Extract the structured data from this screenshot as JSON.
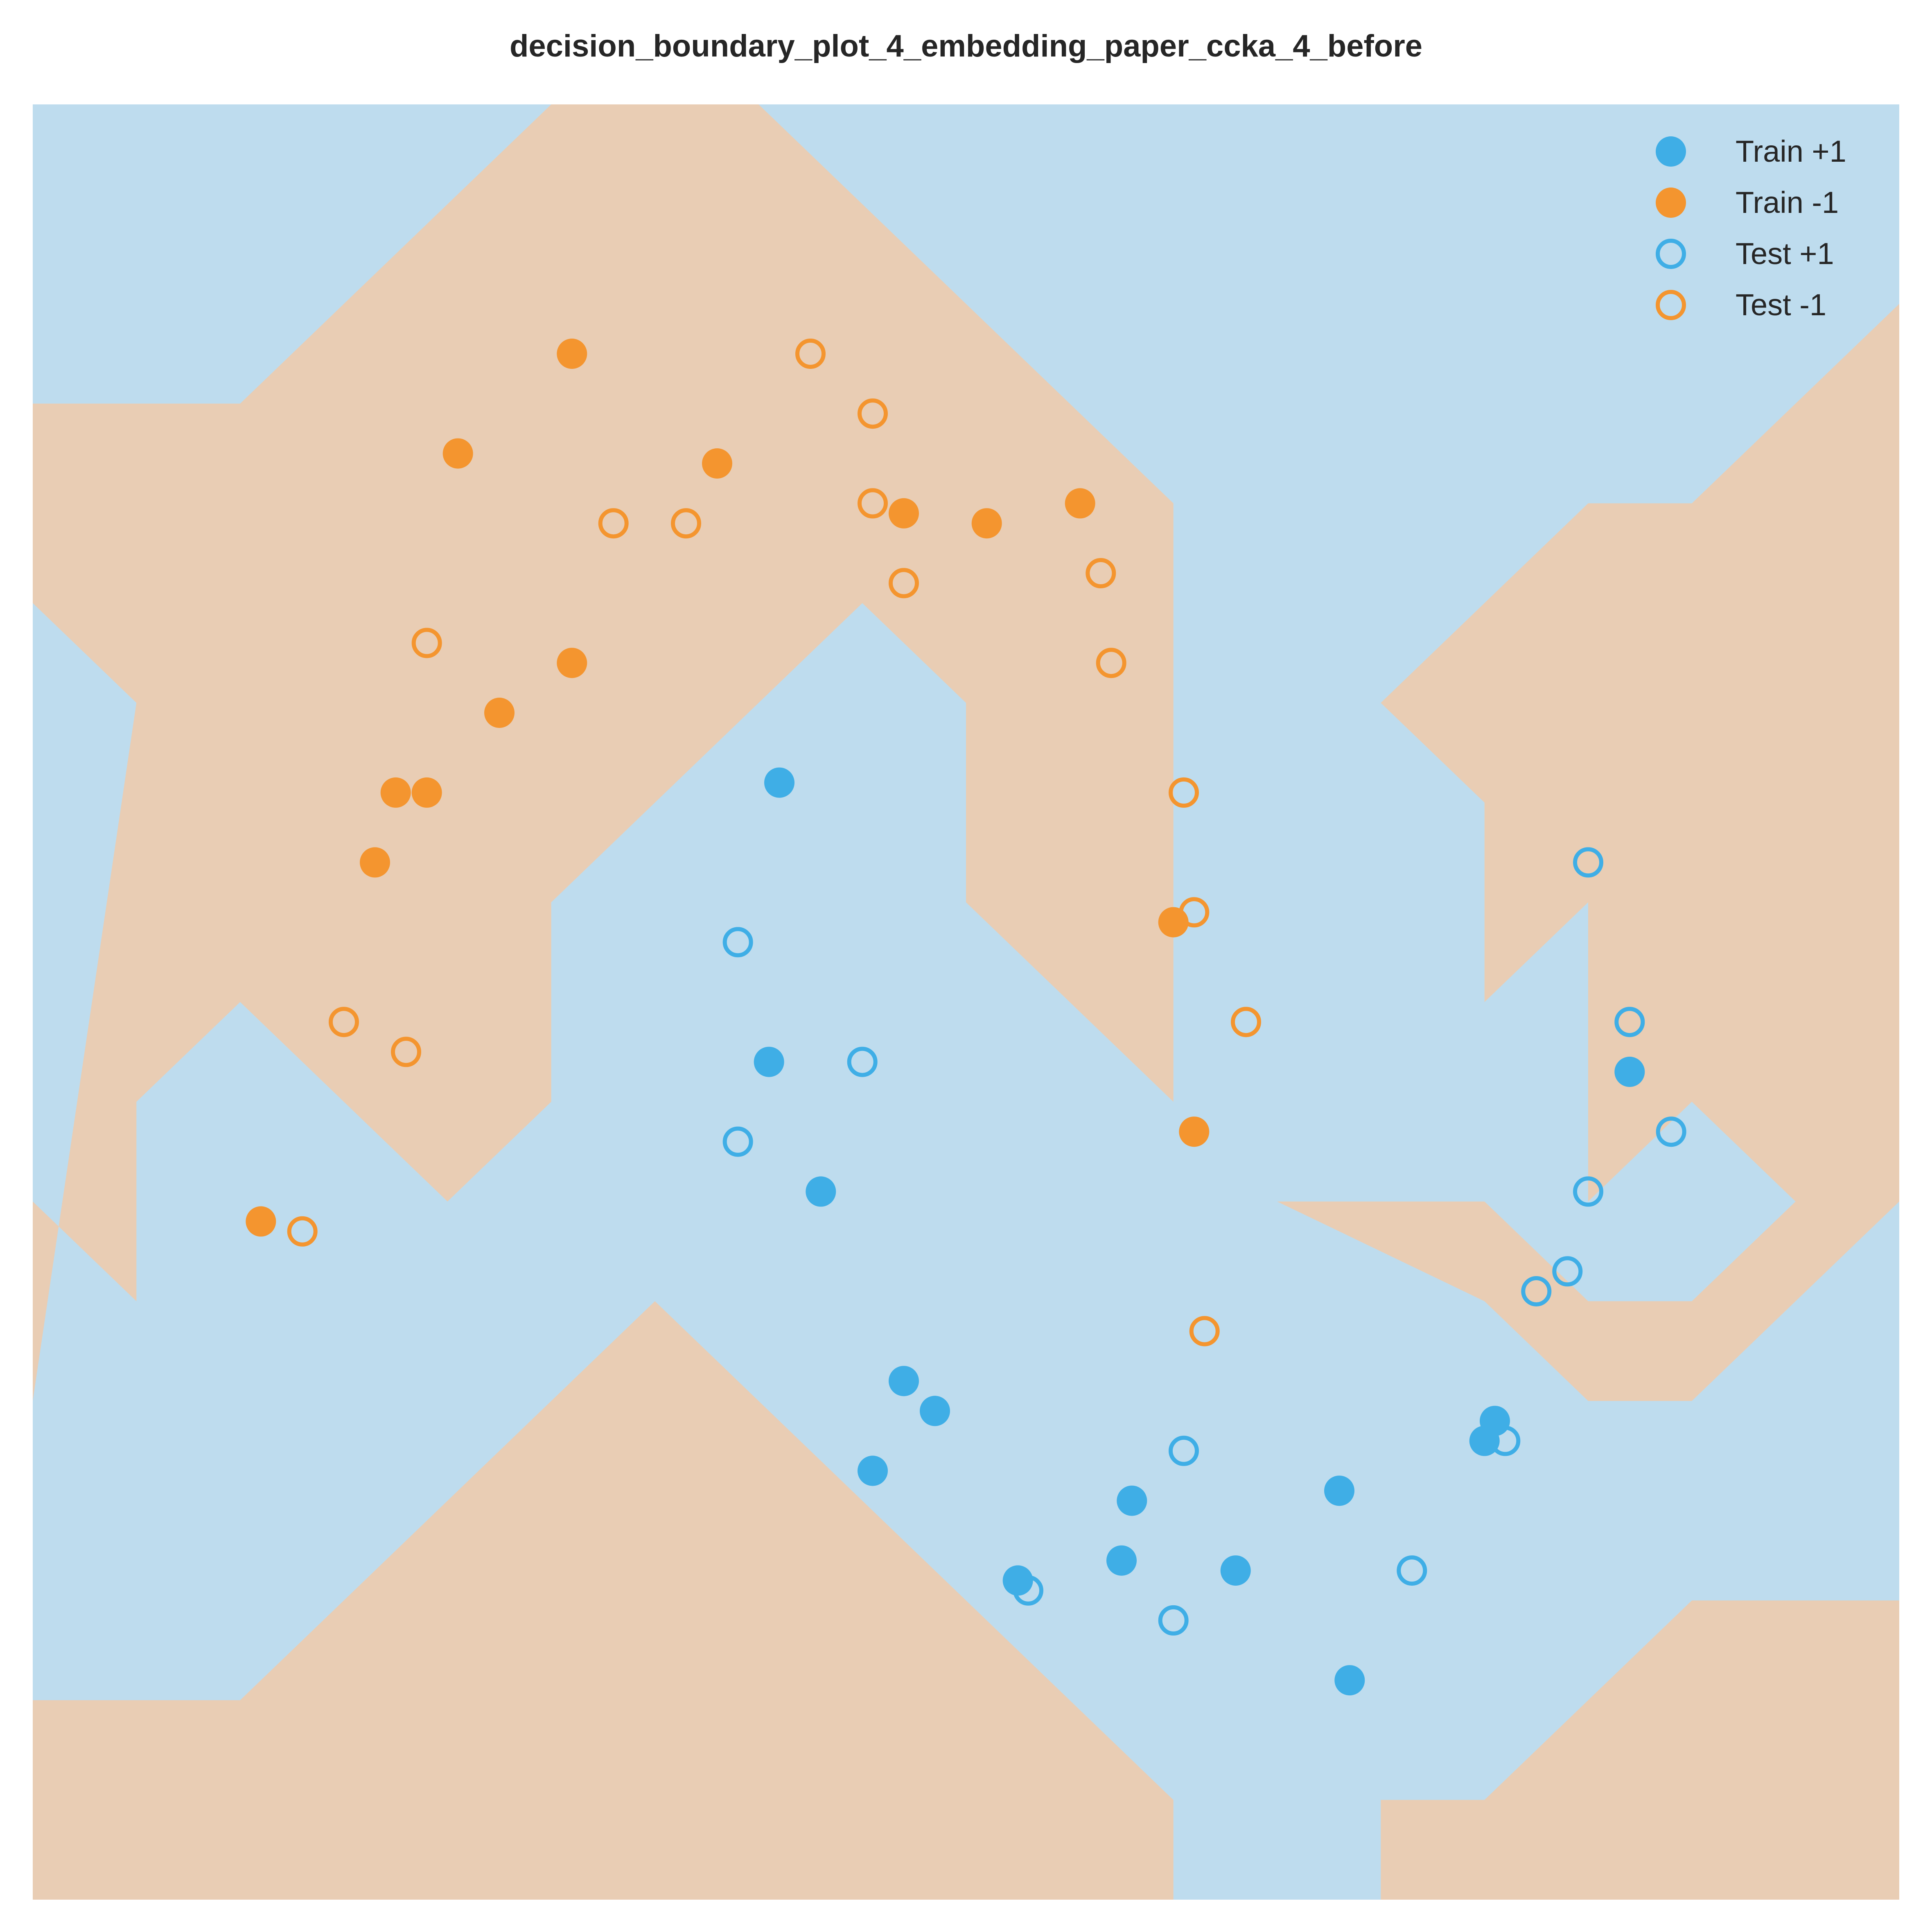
{
  "chart_data": {
    "type": "scatter",
    "title": "decision_boundary_plot_4_embedding_paper_ccka_4_before",
    "xlabel": "",
    "ylabel": "",
    "xlim": [
      0,
      18
    ],
    "ylim": [
      0,
      18
    ],
    "grid": false,
    "legend_position": "top-right",
    "colors": {
      "pos_point": "#3FAEE6",
      "neg_point": "#F4952F",
      "pos_region": "#BEDCEE",
      "neg_region": "#E9CDB4"
    },
    "decision_regions": {
      "background_class": "+1",
      "negative_class_regions": [
        [
          [
            0,
            0
          ],
          [
            0,
            2
          ],
          [
            2,
            2
          ],
          [
            6,
            6
          ],
          [
            11,
            1
          ],
          [
            11,
            0
          ]
        ],
        [
          [
            18,
            0
          ],
          [
            13,
            0
          ],
          [
            13,
            1
          ],
          [
            14,
            1
          ],
          [
            16,
            3
          ],
          [
            18,
            3
          ]
        ],
        [
          [
            0,
            5
          ],
          [
            0,
            7
          ],
          [
            1,
            6
          ],
          [
            1,
            8
          ],
          [
            2,
            9
          ],
          [
            4,
            7
          ],
          [
            5,
            8
          ],
          [
            5,
            10
          ],
          [
            8,
            13
          ],
          [
            9,
            12
          ],
          [
            9,
            10
          ],
          [
            12,
            7
          ],
          [
            14,
            7
          ],
          [
            15,
            6
          ],
          [
            16,
            6
          ],
          [
            17,
            7
          ],
          [
            16,
            8
          ],
          [
            15,
            7
          ],
          [
            15,
            10
          ],
          [
            14,
            9
          ],
          [
            14,
            11
          ],
          [
            13,
            12
          ],
          [
            15,
            14
          ],
          [
            16,
            14
          ],
          [
            18,
            16
          ],
          [
            18,
            7
          ],
          [
            16,
            5
          ],
          [
            15,
            5
          ],
          [
            14,
            6
          ],
          [
            12,
            7
          ],
          [
            11,
            8
          ],
          [
            11,
            14
          ],
          [
            7,
            18
          ],
          [
            5,
            18
          ],
          [
            2,
            15
          ],
          [
            0,
            15
          ],
          [
            0,
            13
          ],
          [
            1,
            12
          ]
        ]
      ]
    },
    "series": [
      {
        "name": "Train +1",
        "marker": "filled",
        "color": "pos",
        "points": [
          [
            7.2,
            11.2
          ],
          [
            7.1,
            8.4
          ],
          [
            7.6,
            7.1
          ],
          [
            8.4,
            5.2
          ],
          [
            8.7,
            4.9
          ],
          [
            8.1,
            4.3
          ],
          [
            10.6,
            4.0
          ],
          [
            9.5,
            3.2
          ],
          [
            10.5,
            3.4
          ],
          [
            11.6,
            3.3
          ],
          [
            12.6,
            4.1
          ],
          [
            12.7,
            2.2
          ],
          [
            14.1,
            4.8
          ],
          [
            14.0,
            4.6
          ],
          [
            15.4,
            8.3
          ]
        ]
      },
      {
        "name": "Train -1",
        "marker": "filled",
        "color": "neg",
        "points": [
          [
            5.2,
            15.5
          ],
          [
            4.1,
            14.5
          ],
          [
            6.6,
            14.4
          ],
          [
            8.4,
            13.9
          ],
          [
            9.2,
            13.8
          ],
          [
            10.1,
            14.0
          ],
          [
            5.2,
            12.4
          ],
          [
            4.5,
            11.9
          ],
          [
            3.5,
            11.1
          ],
          [
            3.8,
            11.1
          ],
          [
            3.3,
            10.4
          ],
          [
            11.0,
            9.8
          ],
          [
            11.2,
            7.7
          ],
          [
            2.2,
            6.8
          ]
        ]
      },
      {
        "name": "Test +1",
        "marker": "open",
        "color": "pos",
        "points": [
          [
            6.8,
            9.6
          ],
          [
            8.0,
            8.4
          ],
          [
            6.8,
            7.6
          ],
          [
            15.0,
            10.4
          ],
          [
            15.4,
            8.8
          ],
          [
            15.8,
            7.7
          ],
          [
            15.0,
            7.1
          ],
          [
            14.8,
            6.3
          ],
          [
            14.5,
            6.1
          ],
          [
            11.1,
            4.5
          ],
          [
            14.2,
            4.6
          ],
          [
            9.6,
            3.1
          ],
          [
            11.0,
            2.8
          ],
          [
            13.3,
            3.3
          ]
        ]
      },
      {
        "name": "Test -1",
        "marker": "open",
        "color": "neg",
        "points": [
          [
            7.5,
            15.5
          ],
          [
            8.1,
            14.9
          ],
          [
            5.6,
            13.8
          ],
          [
            6.3,
            13.8
          ],
          [
            8.1,
            14.0
          ],
          [
            8.4,
            13.2
          ],
          [
            10.3,
            13.3
          ],
          [
            10.4,
            12.4
          ],
          [
            3.8,
            12.6
          ],
          [
            11.1,
            11.1
          ],
          [
            11.2,
            9.9
          ],
          [
            11.7,
            8.8
          ],
          [
            3.0,
            8.8
          ],
          [
            3.6,
            8.5
          ],
          [
            2.6,
            6.7
          ],
          [
            11.3,
            5.7
          ]
        ]
      }
    ]
  }
}
